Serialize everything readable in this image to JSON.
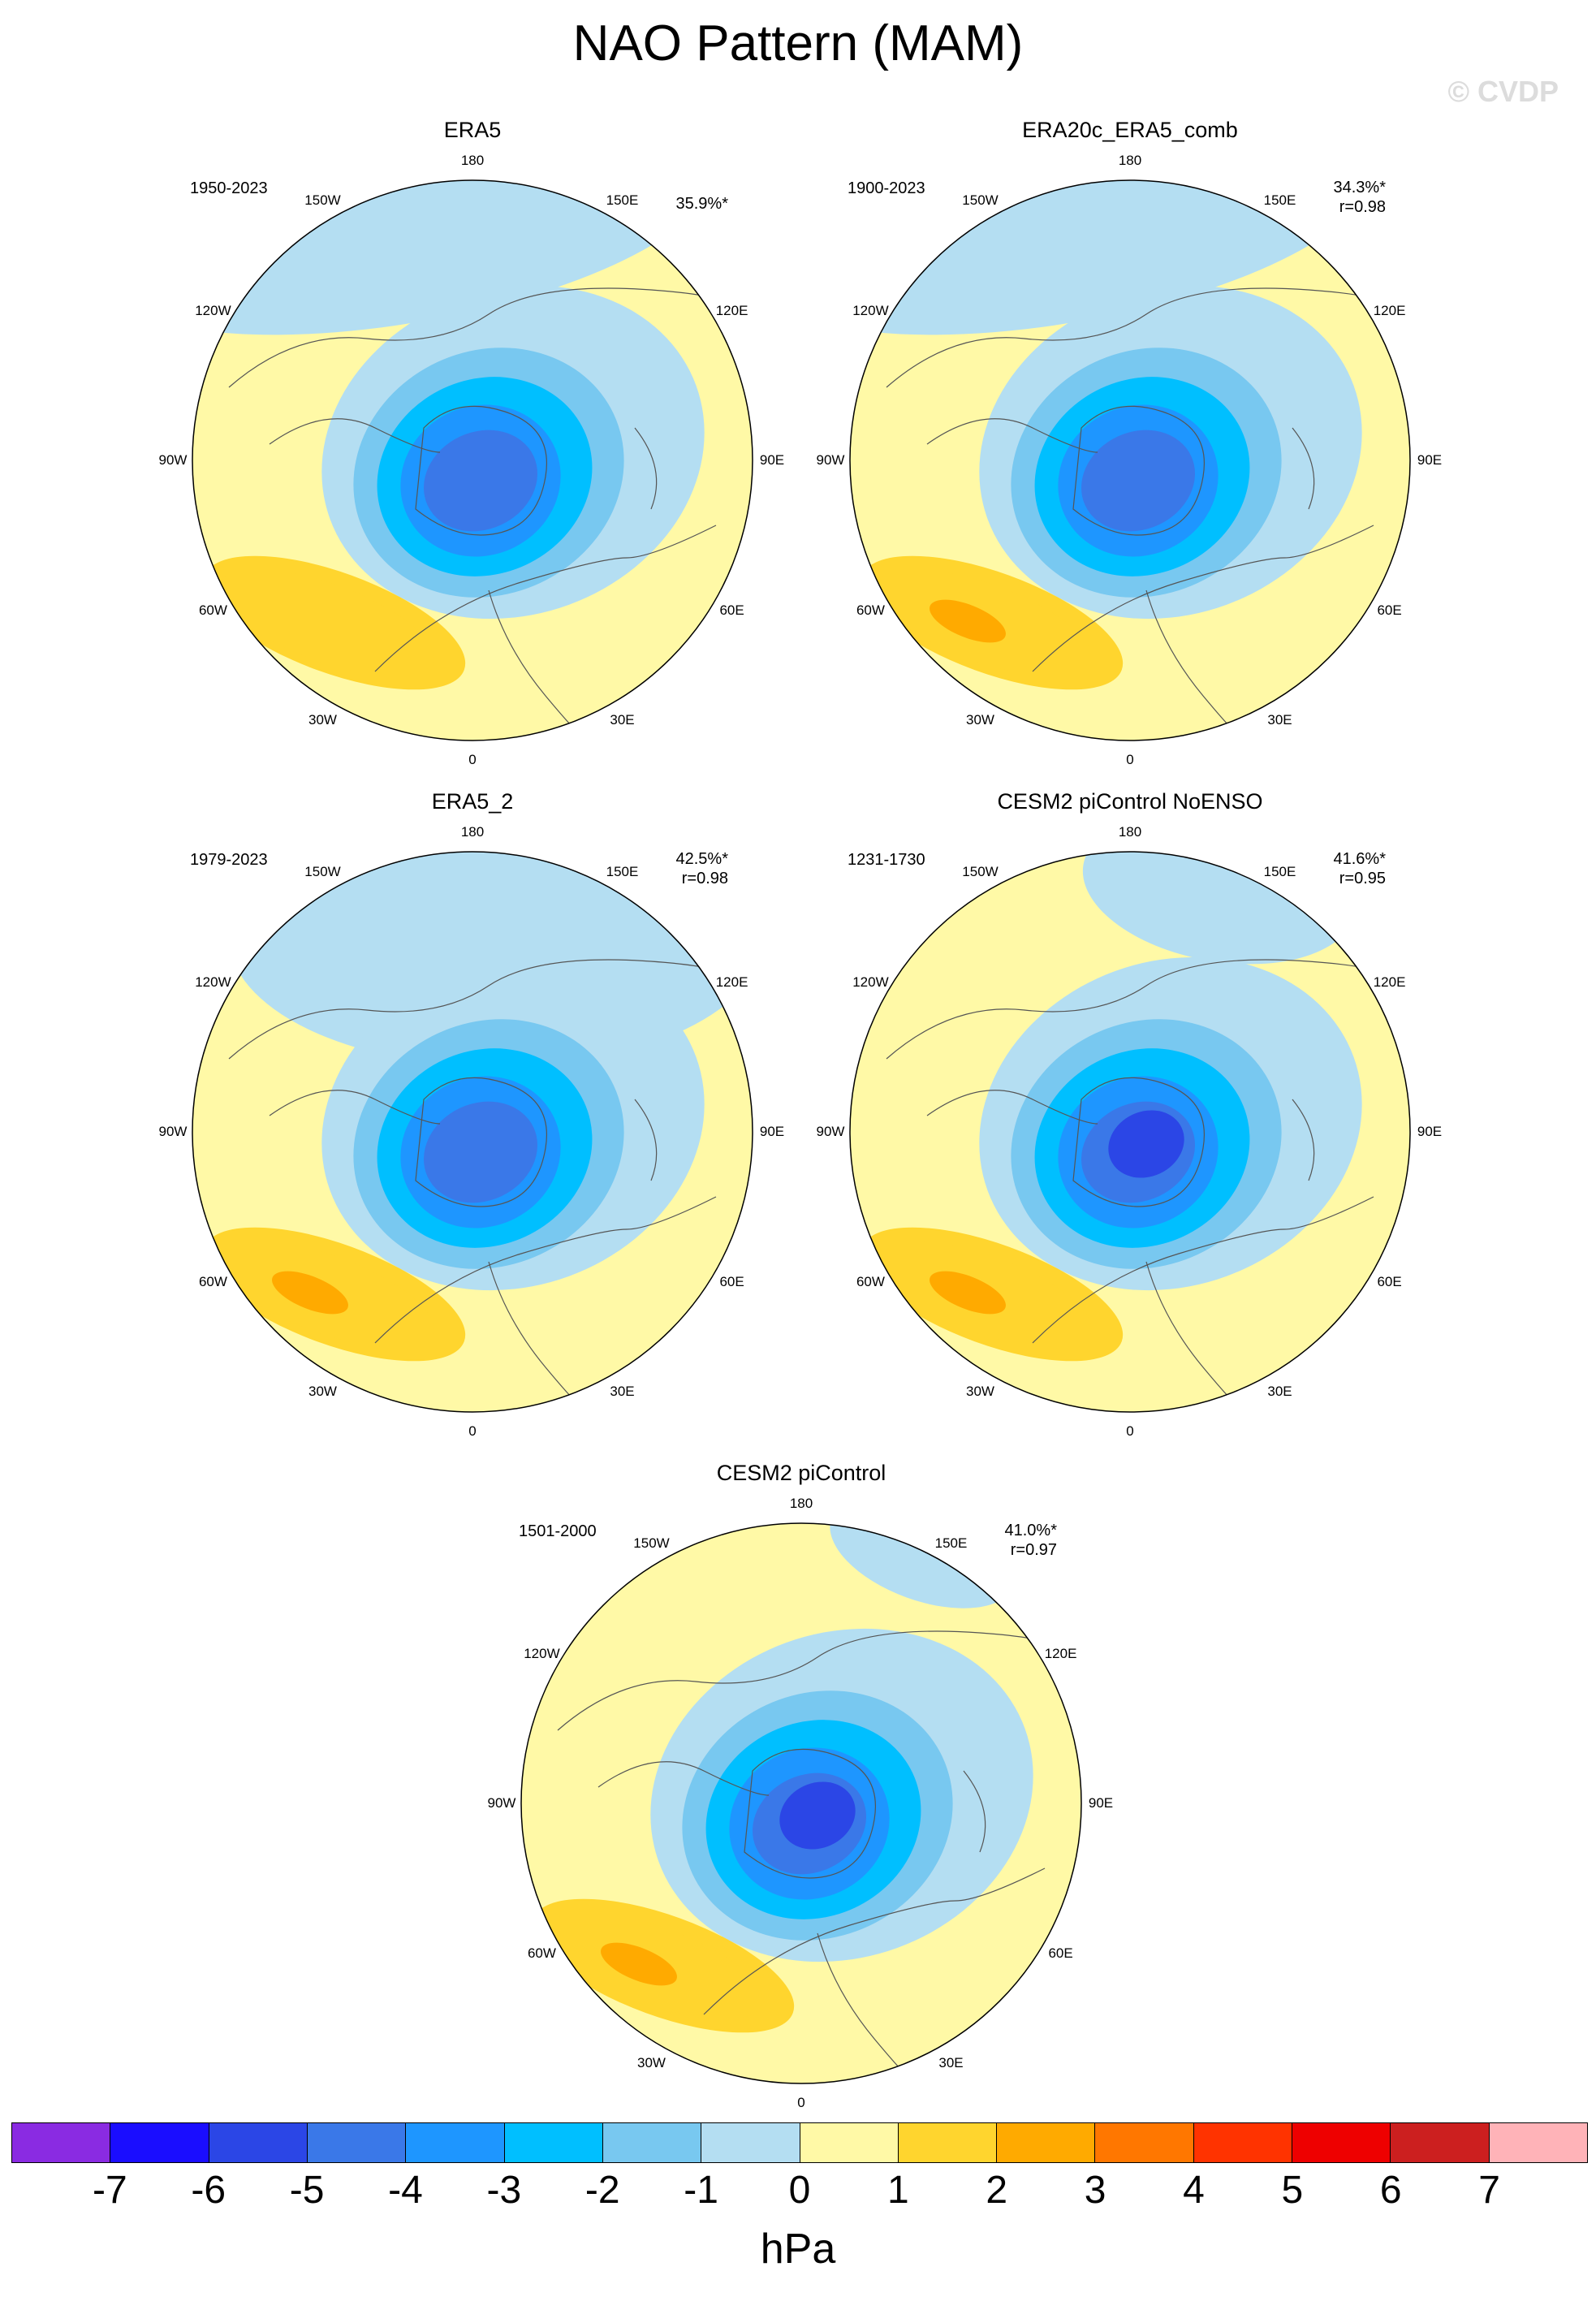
{
  "title": "NAO Pattern (MAM)",
  "watermark": "© CVDP",
  "units": "hPa",
  "lon_labels": [
    "180",
    "150E",
    "120E",
    "90E",
    "60E",
    "30E",
    "0",
    "30W",
    "60W",
    "90W",
    "120W",
    "150W"
  ],
  "colorbar": {
    "colors": [
      "#8a2be2",
      "#1a0dff",
      "#2b46e6",
      "#3a78e8",
      "#1e96ff",
      "#00bfff",
      "#78c8f0",
      "#b4def2",
      "#fff9a6",
      "#ffd52e",
      "#ffaa00",
      "#ff7700",
      "#ff3300",
      "#ee0000",
      "#cc1f1f",
      "#ffb3b8"
    ],
    "labels": [
      "-7",
      "-6",
      "-5",
      "-4",
      "-3",
      "-2",
      "-1",
      "0",
      "1",
      "2",
      "3",
      "4",
      "5",
      "6",
      "7"
    ]
  },
  "panels": [
    {
      "title": "ERA5",
      "period": "1950-2023",
      "variance": "35.9%*",
      "correlation": "",
      "pattern": {
        "arctic_low_min_hPa": -4,
        "subtropical_high_max_hPa": 2,
        "pacific_negative": true
      }
    },
    {
      "title": "ERA20c_ERA5_comb",
      "period": "1900-2023",
      "variance": "34.3%*",
      "correlation": "r=0.98",
      "pattern": {
        "arctic_low_min_hPa": -4,
        "subtropical_high_max_hPa": 3,
        "pacific_negative": true
      }
    },
    {
      "title": "ERA5_2",
      "period": "1979-2023",
      "variance": "42.5%*",
      "correlation": "r=0.98",
      "pattern": {
        "arctic_low_min_hPa": -4,
        "subtropical_high_max_hPa": 3,
        "pacific_negative": true
      }
    },
    {
      "title": "CESM2 piControl NoENSO",
      "period": "1231-1730",
      "variance": "41.6%*",
      "correlation": "r=0.95",
      "pattern": {
        "arctic_low_min_hPa": -5,
        "subtropical_high_max_hPa": 3,
        "pacific_negative": true
      }
    },
    {
      "title": "CESM2 piControl",
      "period": "1501-2000",
      "variance": "41.0%*",
      "correlation": "r=0.97",
      "pattern": {
        "arctic_low_min_hPa": -5,
        "subtropical_high_max_hPa": 3,
        "pacific_negative": true
      }
    }
  ]
}
